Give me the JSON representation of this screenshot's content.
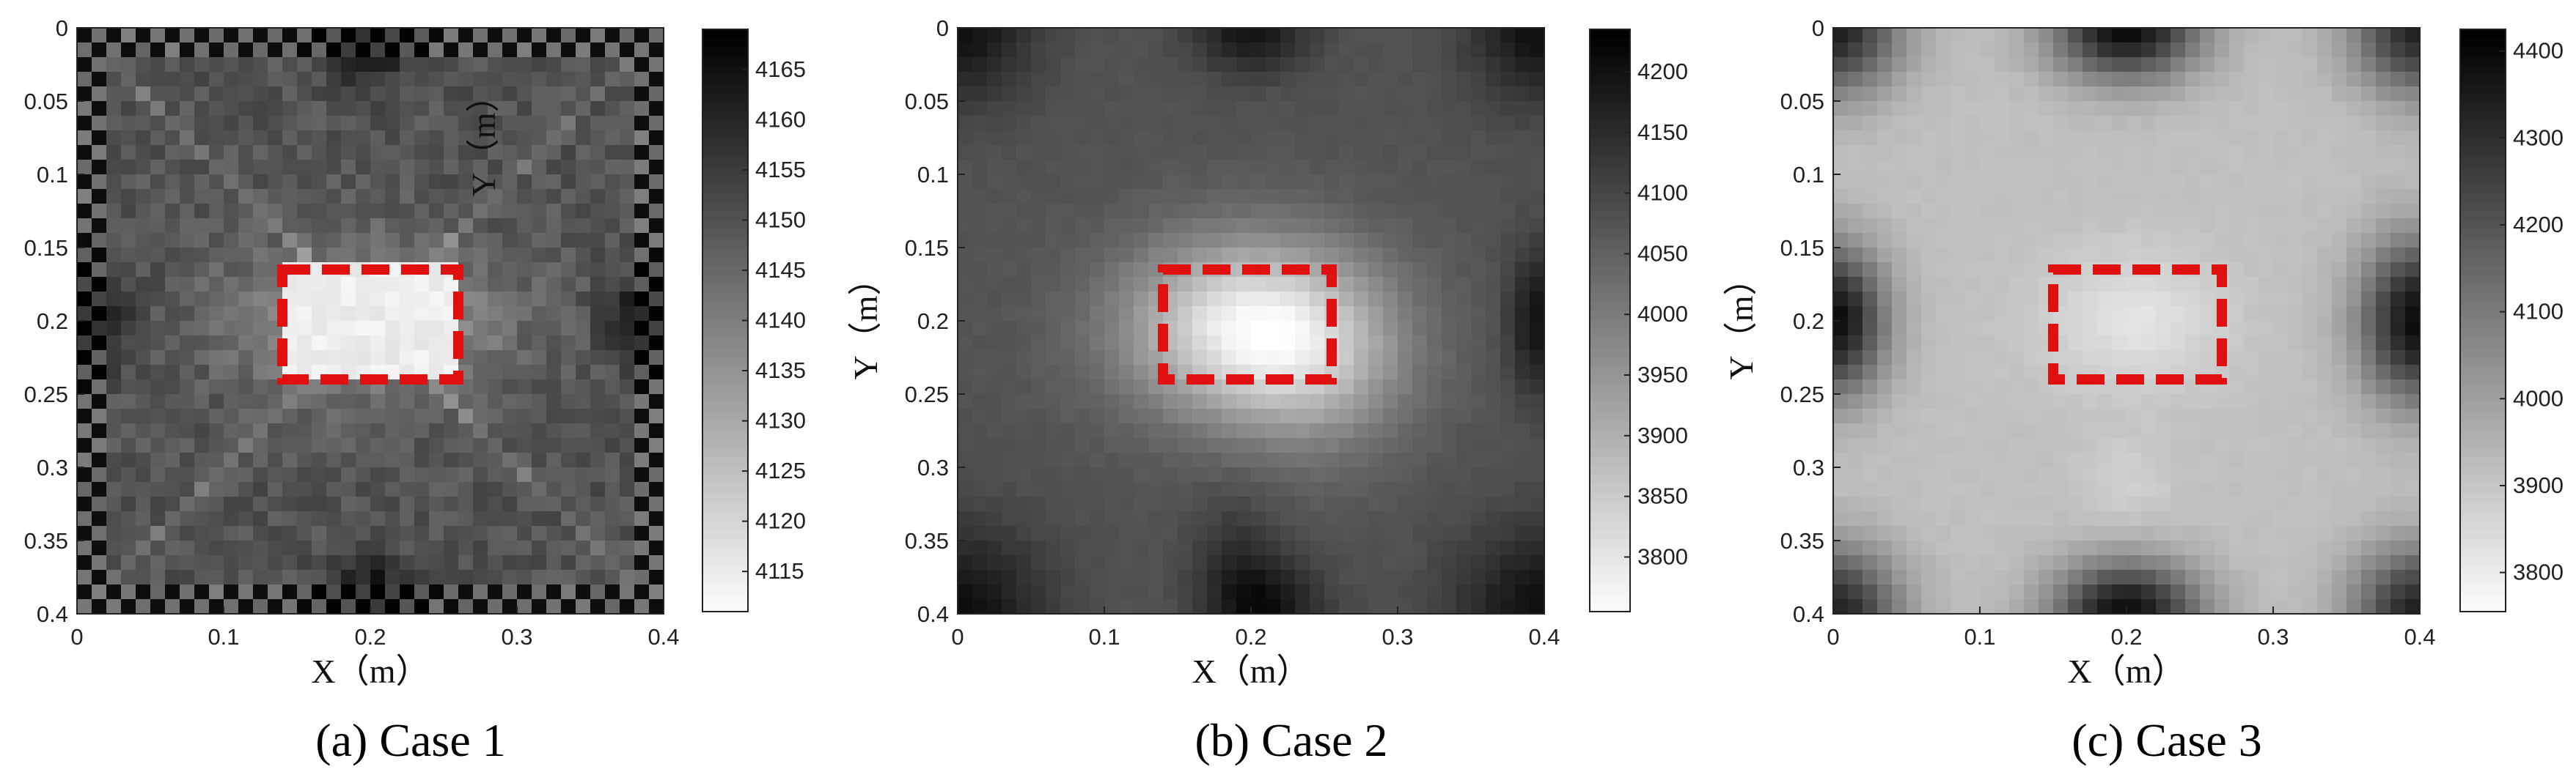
{
  "chart_data": [
    {
      "type": "heatmap",
      "caption": "(a) Case 1",
      "xlabel": "X（m）",
      "ylabel": "Y（m）",
      "xlim": [
        0,
        0.4
      ],
      "ylim": [
        0,
        0.4
      ],
      "y_reversed": true,
      "x_ticks": [
        "0",
        "0.1",
        "0.2",
        "0.3",
        "0.4"
      ],
      "y_ticks": [
        "0",
        "0.05",
        "0.1",
        "0.15",
        "0.2",
        "0.25",
        "0.3",
        "0.35",
        "0.4"
      ],
      "colormap": "gray (low = white, high = black)",
      "colorbar_range": [
        4111,
        4169
      ],
      "colorbar_ticks": [
        "4115",
        "4120",
        "4125",
        "4130",
        "4135",
        "4140",
        "4145",
        "4150",
        "4155",
        "4160",
        "4165"
      ],
      "background_value": 4150,
      "low_region_value": 4113,
      "highlight_box": {
        "x": [
          0.14,
          0.26
        ],
        "y": [
          0.165,
          0.24
        ],
        "color": "#e01010",
        "style": "dashed"
      }
    },
    {
      "type": "heatmap",
      "caption": "(b) Case 2",
      "xlabel": "X（m）",
      "ylabel": "Y（m）",
      "xlim": [
        0,
        0.4
      ],
      "ylim": [
        0,
        0.4
      ],
      "y_reversed": true,
      "x_ticks": [
        "0",
        "0.1",
        "0.2",
        "0.3",
        "0.4"
      ],
      "y_ticks": [
        "0",
        "0.05",
        "0.1",
        "0.15",
        "0.2",
        "0.25",
        "0.3",
        "0.35",
        "0.4"
      ],
      "colormap": "gray (low = white, high = black)",
      "colorbar_range": [
        3755,
        4235
      ],
      "colorbar_ticks": [
        "3800",
        "3850",
        "3900",
        "3950",
        "4000",
        "4050",
        "4100",
        "4150",
        "4200"
      ],
      "background_value": 4080,
      "low_region_value": 3770,
      "highlight_box": {
        "x": [
          0.14,
          0.255
        ],
        "y": [
          0.165,
          0.24
        ],
        "color": "#e01010",
        "style": "dashed"
      }
    },
    {
      "type": "heatmap",
      "caption": "(c) Case 3",
      "xlabel": "X（m）",
      "ylabel": "Y（m）",
      "xlim": [
        0,
        0.4
      ],
      "ylim": [
        0,
        0.4
      ],
      "y_reversed": true,
      "x_ticks": [
        "0",
        "0.1",
        "0.2",
        "0.3",
        "0.4"
      ],
      "y_ticks": [
        "0",
        "0.05",
        "0.1",
        "0.15",
        "0.2",
        "0.25",
        "0.3",
        "0.35",
        "0.4"
      ],
      "colormap": "gray (low = white, high = black)",
      "colorbar_range": [
        3755,
        4425
      ],
      "colorbar_ticks": [
        "3800",
        "3900",
        "4000",
        "4100",
        "4200",
        "4300",
        "4400"
      ],
      "background_value": 3920,
      "low_region_value": 3800,
      "highlight_box": {
        "x": [
          0.15,
          0.265
        ],
        "y": [
          0.165,
          0.24
        ],
        "color": "#e01010",
        "style": "dashed"
      }
    }
  ],
  "colors": {
    "highlight": "#e01010",
    "axis": "#222222"
  }
}
